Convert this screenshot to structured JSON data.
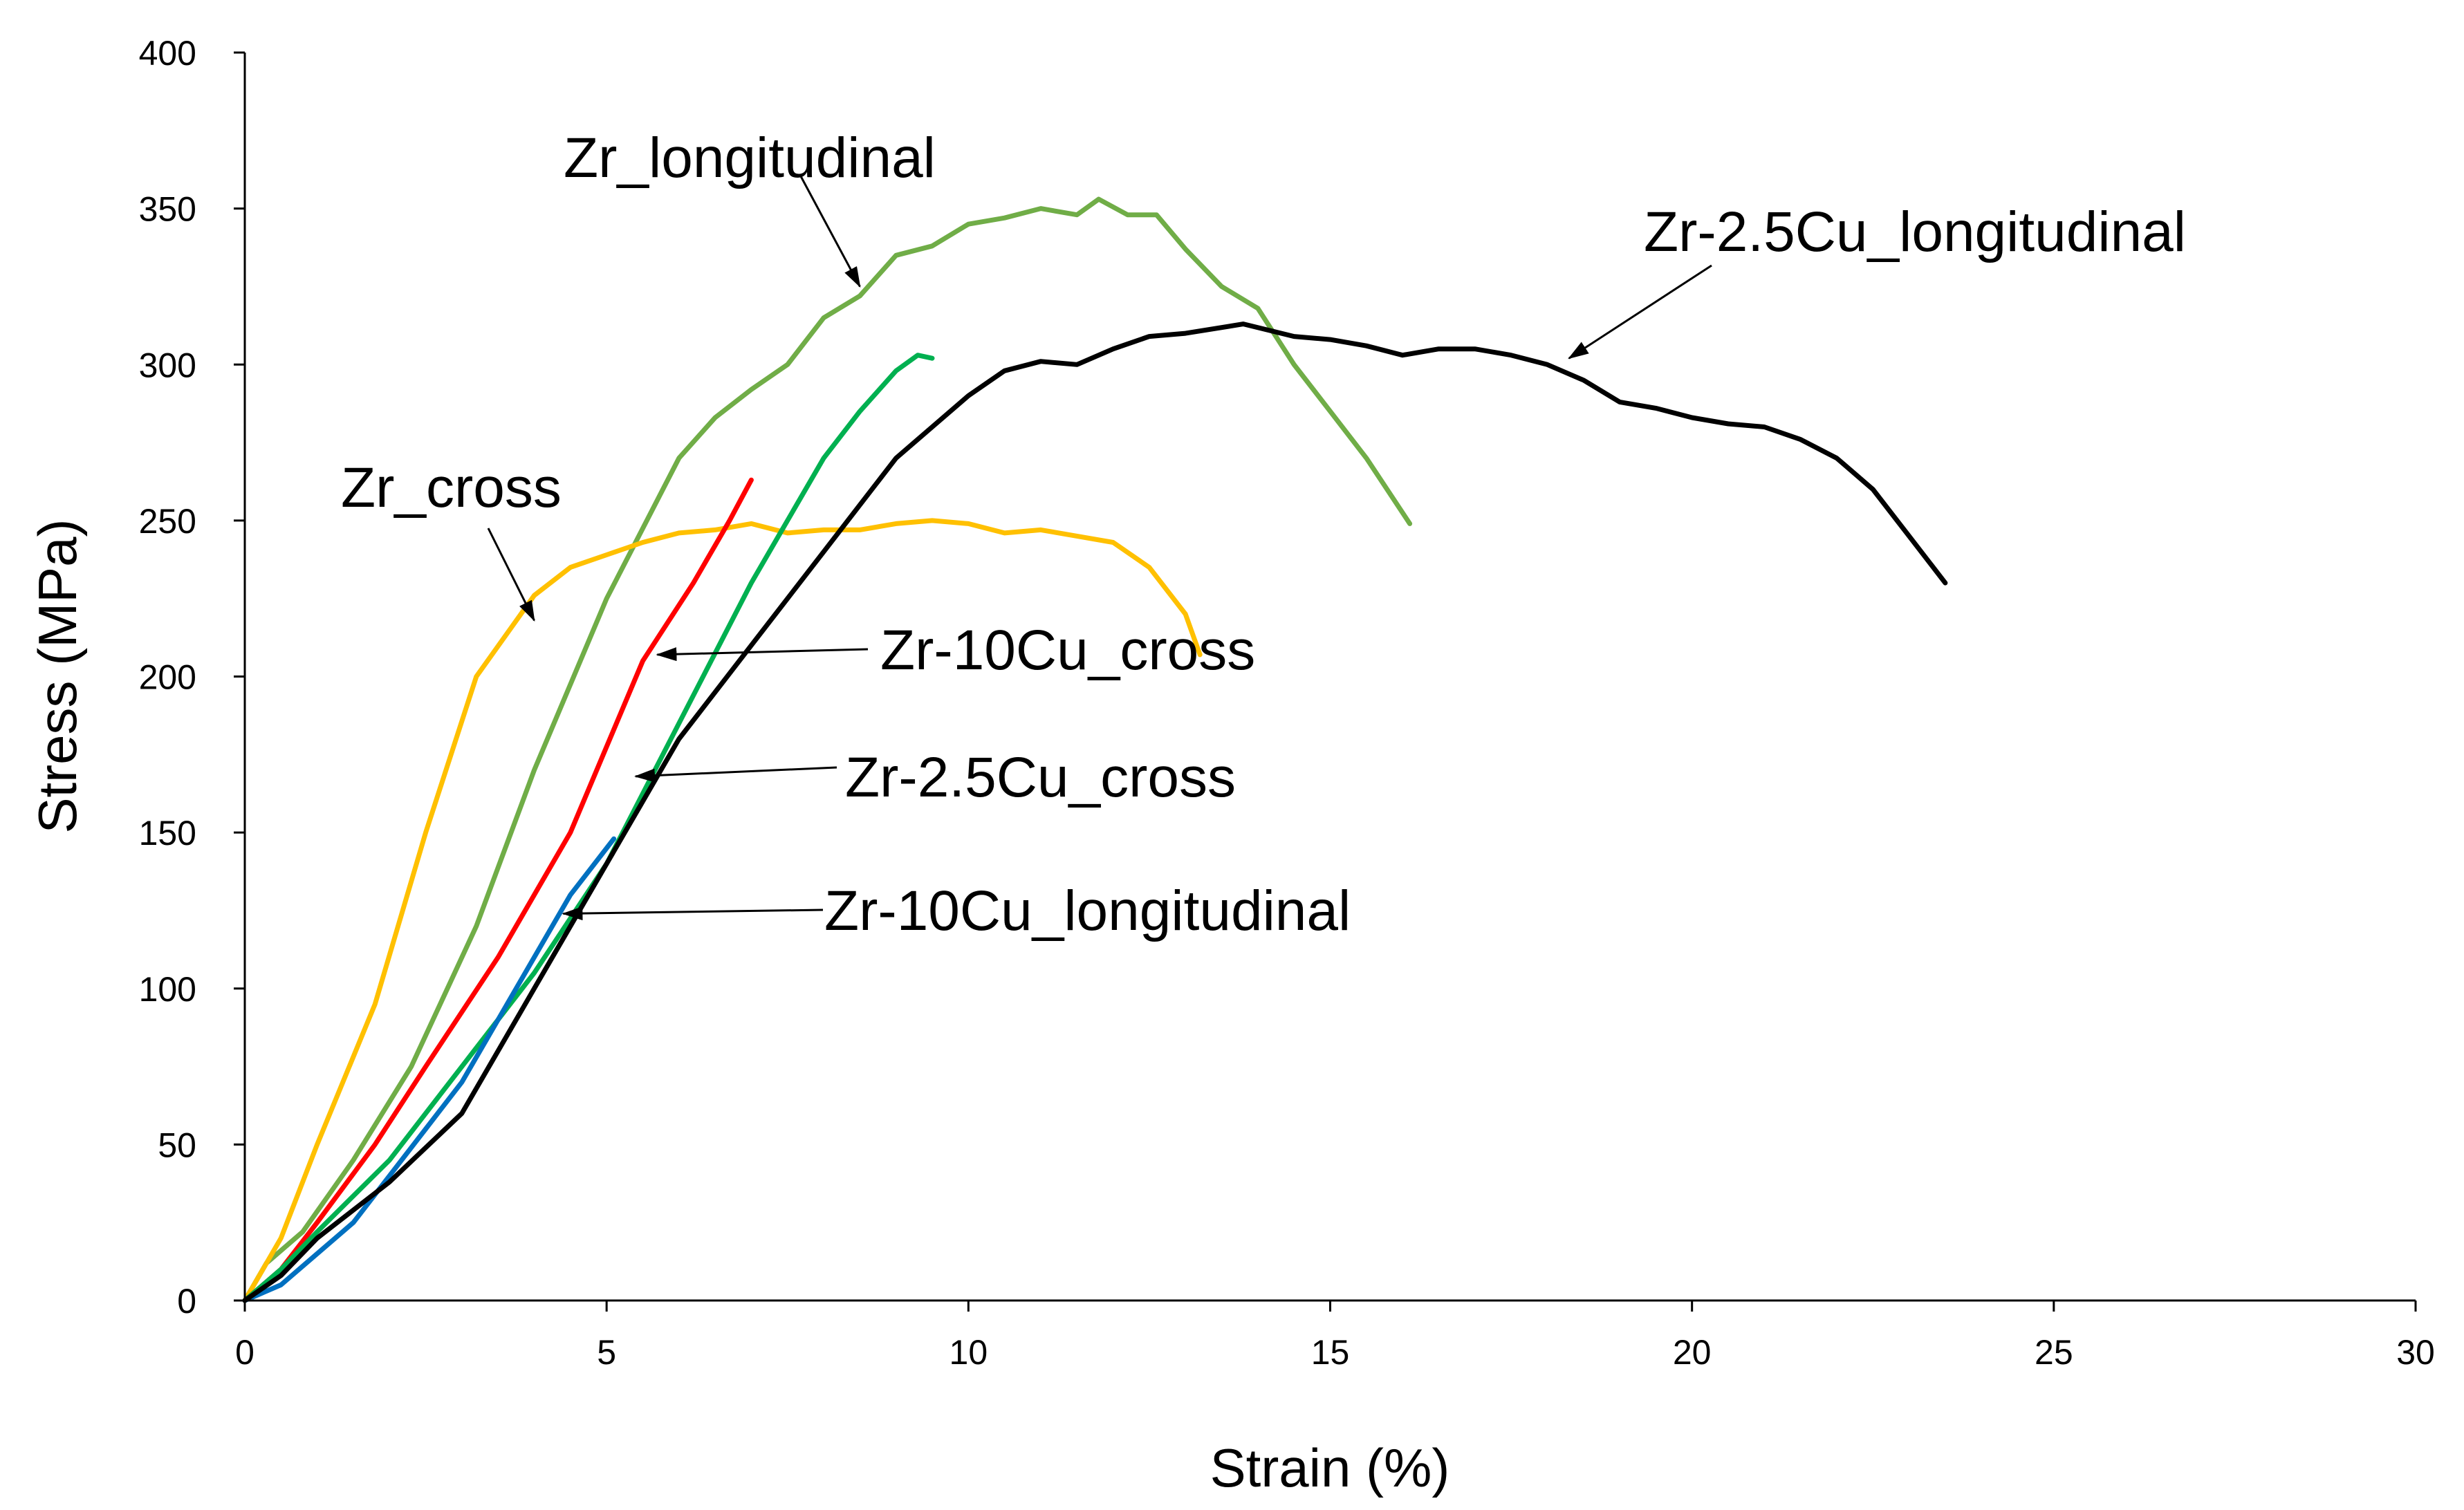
{
  "chart_data": {
    "type": "line",
    "title": "",
    "xlabel": "Strain (%)",
    "ylabel": "Stress (MPa)",
    "xlim": [
      0,
      30
    ],
    "ylim": [
      0,
      400
    ],
    "xticks": [
      "0",
      "5",
      "10",
      "15",
      "20",
      "25",
      "30"
    ],
    "yticks": [
      "0",
      "50",
      "100",
      "150",
      "200",
      "250",
      "300",
      "350",
      "400"
    ],
    "grid": false,
    "legend": "none (curves labeled directly with arrow annotations)",
    "series": [
      {
        "name": "Zr_longitudinal",
        "color": "#70AD47",
        "x": [
          0,
          0.3,
          0.8,
          1.5,
          2.3,
          3.2,
          4.0,
          5.0,
          6.0,
          6.5,
          7.0,
          7.5,
          8.0,
          8.5,
          9.0,
          9.5,
          10.0,
          10.5,
          11.0,
          11.5,
          11.8,
          12.2,
          12.6,
          13.0,
          13.5,
          14.0,
          14.5,
          15.0,
          15.5,
          16.1
        ],
        "y": [
          0,
          12,
          22,
          45,
          75,
          120,
          170,
          225,
          270,
          283,
          292,
          300,
          315,
          322,
          335,
          338,
          345,
          347,
          350,
          348,
          353,
          348,
          348,
          337,
          325,
          318,
          300,
          285,
          270,
          249
        ]
      },
      {
        "name": "Zr_cross",
        "color": "#FFC000",
        "x": [
          0,
          0.5,
          1.0,
          1.8,
          2.5,
          3.2,
          4.0,
          4.5,
          5.0,
          5.5,
          6.0,
          6.5,
          7.0,
          7.5,
          8.0,
          8.5,
          9.0,
          9.5,
          10.0,
          10.5,
          11.0,
          11.5,
          12.0,
          12.5,
          13.0,
          13.2
        ],
        "y": [
          0,
          20,
          50,
          95,
          150,
          200,
          226,
          235,
          239,
          243,
          246,
          247,
          249,
          246,
          247,
          247,
          249,
          250,
          249,
          246,
          247,
          245,
          243,
          235,
          220,
          207
        ]
      },
      {
        "name": "Zr-10Cu_cross",
        "color": "#FF0000",
        "x": [
          0,
          0.5,
          1.0,
          1.8,
          2.5,
          3.5,
          4.5,
          5.5,
          6.2,
          6.7,
          7.0
        ],
        "y": [
          0,
          10,
          25,
          50,
          75,
          110,
          150,
          205,
          230,
          250,
          263
        ]
      },
      {
        "name": "Zr-2.5Cu_cross",
        "color": "#00B050",
        "x": [
          0,
          0.5,
          1.0,
          2.0,
          3.0,
          4.0,
          5.0,
          6.0,
          7.0,
          8.0,
          8.5,
          9.0,
          9.3,
          9.5
        ],
        "y": [
          0,
          10,
          22,
          45,
          75,
          105,
          140,
          185,
          230,
          270,
          285,
          298,
          303,
          302
        ]
      },
      {
        "name": "Zr-10Cu_longitudinal",
        "color": "#0070C0",
        "x": [
          0,
          0.5,
          1.0,
          1.5,
          2.0,
          2.5,
          3.0,
          3.5,
          4.0,
          4.5,
          5.0,
          5.1
        ],
        "y": [
          0,
          5,
          15,
          25,
          40,
          55,
          70,
          90,
          110,
          130,
          145,
          148
        ]
      },
      {
        "name": "Zr-2.5Cu_longitudinal",
        "color": "#000000",
        "x": [
          0,
          0.5,
          1.0,
          2.0,
          3.0,
          4.0,
          5.0,
          6.0,
          7.0,
          8.0,
          9.0,
          9.5,
          10.0,
          10.5,
          11.0,
          11.5,
          12.0,
          12.5,
          13.0,
          13.8,
          14.5,
          15.0,
          15.5,
          16.0,
          16.5,
          17.0,
          17.5,
          18.0,
          18.5,
          19.0,
          19.5,
          20.0,
          20.5,
          21.0,
          21.5,
          22.0,
          22.5,
          23.0,
          23.5
        ],
        "y": [
          0,
          8,
          20,
          38,
          60,
          100,
          140,
          180,
          210,
          240,
          270,
          280,
          290,
          298,
          301,
          300,
          305,
          309,
          310,
          313,
          309,
          308,
          306,
          303,
          305,
          305,
          303,
          300,
          295,
          288,
          286,
          283,
          281,
          280,
          276,
          270,
          260,
          245,
          230
        ]
      }
    ],
    "annotations": [
      {
        "text": "Zr_longitudinal",
        "arrow_to": [
          8.5,
          325
        ]
      },
      {
        "text": "Zr-2.5Cu_longitudinal",
        "arrow_to": [
          18.3,
          302
        ]
      },
      {
        "text": "Zr_cross",
        "arrow_to": [
          4.0,
          218
        ]
      },
      {
        "text": "Zr-10Cu_cross",
        "arrow_to": [
          5.7,
          207
        ]
      },
      {
        "text": "Zr-2.5Cu_cross",
        "arrow_to": [
          5.4,
          168
        ]
      },
      {
        "text": "Zr-10Cu_longitudinal",
        "arrow_to": [
          4.4,
          124
        ]
      }
    ]
  }
}
